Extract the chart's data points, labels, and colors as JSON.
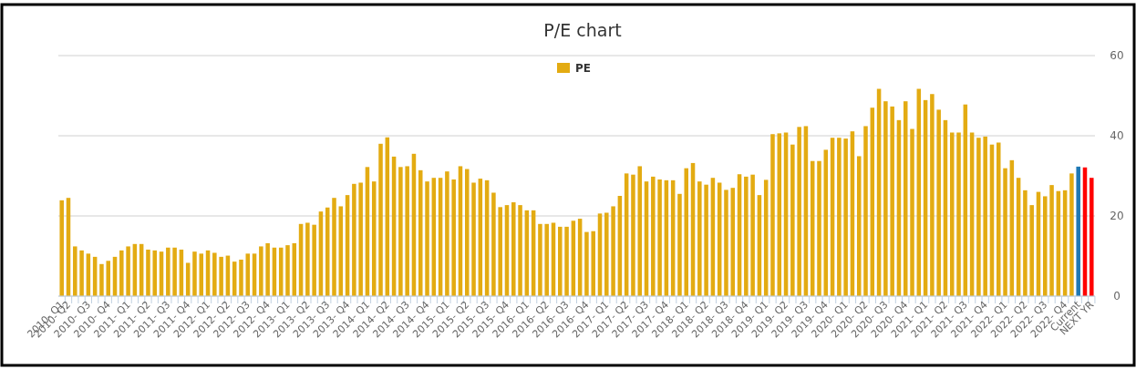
{
  "chart_data": {
    "type": "bar",
    "title": "P/E chart",
    "categories": [
      "2010- Q1",
      "2010- Q2",
      null,
      null,
      "2010- Q3",
      null,
      null,
      "2010- Q4",
      null,
      null,
      "2011- Q1",
      null,
      null,
      "2011- Q2",
      null,
      null,
      "2011- Q3",
      null,
      null,
      "2011- Q4",
      null,
      null,
      "2012- Q1",
      null,
      null,
      "2012- Q2",
      null,
      null,
      "2012- Q3",
      null,
      null,
      "2012- Q4",
      null,
      null,
      "2013- Q1",
      null,
      null,
      "2013- Q2",
      null,
      null,
      "2013- Q3",
      null,
      null,
      "2013- Q4",
      null,
      null,
      "2014- Q1",
      null,
      null,
      "2014- Q2",
      null,
      null,
      "2014- Q3",
      null,
      null,
      "2014- Q4",
      null,
      null,
      "2015- Q1",
      null,
      null,
      "2015- Q2",
      null,
      null,
      "2015- Q3",
      null,
      null,
      "2015- Q4",
      null,
      null,
      "2016- Q1",
      null,
      null,
      "2016- Q2",
      null,
      null,
      "2016- Q3",
      null,
      null,
      "2016- Q4",
      null,
      null,
      "2017- Q1",
      null,
      null,
      "2017- Q2",
      null,
      null,
      "2017- Q3",
      null,
      null,
      "2017- Q4",
      null,
      null,
      "2018- Q1",
      null,
      null,
      "2018- Q2",
      null,
      null,
      "2018- Q3",
      null,
      null,
      "2018- Q4",
      null,
      null,
      "2019- Q1",
      null,
      null,
      "2019- Q2",
      null,
      null,
      "2019- Q3",
      null,
      null,
      "2019- Q4",
      null,
      null,
      "2020- Q1",
      null,
      null,
      "2020- Q2",
      null,
      null,
      "2020- Q3",
      null,
      null,
      "2020- Q4",
      null,
      null,
      "2021- Q1",
      null,
      null,
      "2021- Q2",
      null,
      null,
      "2021- Q3",
      null,
      null,
      "2021- Q4",
      null,
      null,
      "2022- Q1",
      null,
      null,
      "2022- Q2",
      null,
      null,
      "2022- Q3",
      null,
      null,
      "2022- Q4",
      null,
      "Current",
      null,
      "NEXT YR"
    ],
    "series": [
      {
        "name": "PE",
        "color": "#e3ab12",
        "values": [
          23.9,
          24.5,
          12.4,
          11.4,
          10.6,
          9.8,
          8.0,
          8.8,
          9.8,
          11.4,
          12.4,
          13.0,
          13.0,
          11.6,
          11.4,
          11.1,
          12.1,
          12.1,
          11.6,
          8.3,
          11.1,
          10.6,
          11.4,
          10.8,
          9.8,
          10.1,
          8.6,
          9.1,
          10.6,
          10.6,
          12.4,
          13.2,
          12.1,
          12.1,
          12.7,
          13.2,
          18.0,
          18.3,
          17.8,
          21.1,
          22.1,
          24.5,
          22.4,
          25.2,
          28.0,
          28.3,
          32.2,
          28.6,
          38.0,
          39.6,
          34.8,
          32.2,
          32.4,
          35.5,
          31.4,
          28.6,
          29.5,
          29.5,
          31.1,
          29.1,
          32.4,
          31.7,
          28.3,
          29.3,
          28.9,
          25.8,
          22.2,
          22.7,
          23.4,
          22.7,
          21.4,
          21.4,
          18.0,
          18.0,
          18.3,
          17.3,
          17.3,
          18.8,
          19.3,
          16.0,
          16.2,
          20.6,
          20.8,
          22.4,
          25.0,
          30.6,
          30.3,
          32.4,
          28.6,
          29.8,
          29.1,
          28.9,
          28.9,
          25.5,
          31.9,
          33.2,
          28.6,
          27.8,
          29.5,
          28.3,
          26.5,
          27.0,
          30.4,
          29.8,
          30.3,
          25.2,
          29.0,
          40.4,
          40.6,
          40.8,
          37.8,
          42.2,
          42.4,
          33.7,
          33.7,
          36.5,
          39.5,
          39.5,
          39.3,
          41.1,
          34.9,
          42.4,
          47.0,
          51.7,
          48.6,
          47.3,
          43.9,
          48.6,
          41.7,
          51.7,
          48.9,
          50.4,
          46.5,
          43.9,
          40.8,
          40.8,
          47.8,
          40.8,
          39.5,
          39.8,
          37.8,
          38.3,
          31.9,
          33.9,
          29.5,
          26.4,
          22.7,
          26.0,
          24.9,
          27.7,
          26.2,
          26.4,
          30.6,
          32.3,
          32.1,
          29.5
        ],
        "colors": [
          "#e3ab12",
          "#e3ab12",
          "#e3ab12",
          "#e3ab12",
          "#e3ab12",
          "#e3ab12",
          "#e3ab12",
          "#e3ab12",
          "#e3ab12",
          "#e3ab12",
          "#e3ab12",
          "#e3ab12",
          "#e3ab12",
          "#e3ab12",
          "#e3ab12",
          "#e3ab12",
          "#e3ab12",
          "#e3ab12",
          "#e3ab12",
          "#e3ab12",
          "#e3ab12",
          "#e3ab12",
          "#e3ab12",
          "#e3ab12",
          "#e3ab12",
          "#e3ab12",
          "#e3ab12",
          "#e3ab12",
          "#e3ab12",
          "#e3ab12",
          "#e3ab12",
          "#e3ab12",
          "#e3ab12",
          "#e3ab12",
          "#e3ab12",
          "#e3ab12",
          "#e3ab12",
          "#e3ab12",
          "#e3ab12",
          "#e3ab12",
          "#e3ab12",
          "#e3ab12",
          "#e3ab12",
          "#e3ab12",
          "#e3ab12",
          "#e3ab12",
          "#e3ab12",
          "#e3ab12",
          "#e3ab12",
          "#e3ab12",
          "#e3ab12",
          "#e3ab12",
          "#e3ab12",
          "#e3ab12",
          "#e3ab12",
          "#e3ab12",
          "#e3ab12",
          "#e3ab12",
          "#e3ab12",
          "#e3ab12",
          "#e3ab12",
          "#e3ab12",
          "#e3ab12",
          "#e3ab12",
          "#e3ab12",
          "#e3ab12",
          "#e3ab12",
          "#e3ab12",
          "#e3ab12",
          "#e3ab12",
          "#e3ab12",
          "#e3ab12",
          "#e3ab12",
          "#e3ab12",
          "#e3ab12",
          "#e3ab12",
          "#e3ab12",
          "#e3ab12",
          "#e3ab12",
          "#e3ab12",
          "#e3ab12",
          "#e3ab12",
          "#e3ab12",
          "#e3ab12",
          "#e3ab12",
          "#e3ab12",
          "#e3ab12",
          "#e3ab12",
          "#e3ab12",
          "#e3ab12",
          "#e3ab12",
          "#e3ab12",
          "#e3ab12",
          "#e3ab12",
          "#e3ab12",
          "#e3ab12",
          "#e3ab12",
          "#e3ab12",
          "#e3ab12",
          "#e3ab12",
          "#e3ab12",
          "#e3ab12",
          "#e3ab12",
          "#e3ab12",
          "#e3ab12",
          "#e3ab12",
          "#e3ab12",
          "#e3ab12",
          "#e3ab12",
          "#e3ab12",
          "#e3ab12",
          "#e3ab12",
          "#e3ab12",
          "#e3ab12",
          "#e3ab12",
          "#e3ab12",
          "#e3ab12",
          "#e3ab12",
          "#e3ab12",
          "#e3ab12",
          "#e3ab12",
          "#e3ab12",
          "#e3ab12",
          "#e3ab12",
          "#e3ab12",
          "#e3ab12",
          "#e3ab12",
          "#e3ab12",
          "#e3ab12",
          "#e3ab12",
          "#e3ab12",
          "#e3ab12",
          "#e3ab12",
          "#e3ab12",
          "#e3ab12",
          "#e3ab12",
          "#e3ab12",
          "#e3ab12",
          "#e3ab12",
          "#e3ab12",
          "#e3ab12",
          "#e3ab12",
          "#e3ab12",
          "#e3ab12",
          "#e3ab12",
          "#e3ab12",
          "#e3ab12",
          "#e3ab12",
          "#e3ab12",
          "#e3ab12",
          "#e3ab12",
          "#e3ab12",
          "#e3ab12",
          "#1f78b4",
          "#ff0000",
          "#ff0000"
        ]
      }
    ],
    "ylim": [
      0,
      60
    ],
    "yticks": [
      0,
      20,
      40,
      60
    ],
    "grid": "y",
    "legend": "top"
  }
}
